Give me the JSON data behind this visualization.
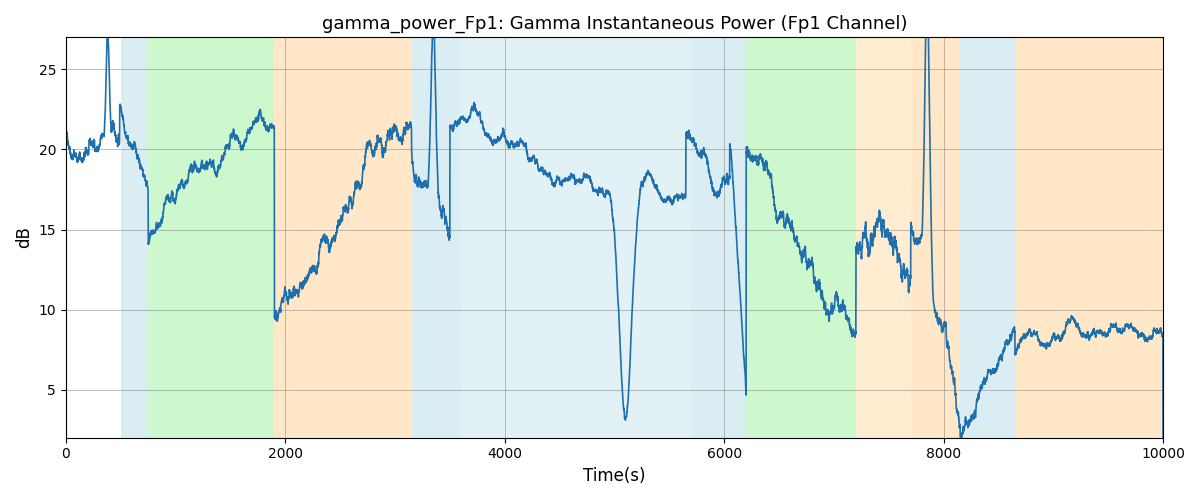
{
  "title": "gamma_power_Fp1: Gamma Instantaneous Power (Fp1 Channel)",
  "xlabel": "Time(s)",
  "ylabel": "dB",
  "xlim": [
    0,
    10000
  ],
  "ylim": [
    2,
    27
  ],
  "line_color": "#1f6fad",
  "line_width": 1.2,
  "background_color": "#ffffff",
  "figsize": [
    12,
    5
  ],
  "dpi": 100,
  "regions": [
    {
      "xmin": 500,
      "xmax": 750,
      "color": "#add8e6",
      "alpha": 0.45
    },
    {
      "xmin": 750,
      "xmax": 1900,
      "color": "#90ee90",
      "alpha": 0.45
    },
    {
      "xmin": 1900,
      "xmax": 3150,
      "color": "#ffd59a",
      "alpha": 0.55
    },
    {
      "xmin": 3150,
      "xmax": 3600,
      "color": "#add8e6",
      "alpha": 0.45
    },
    {
      "xmin": 3600,
      "xmax": 5700,
      "color": "#add8e6",
      "alpha": 0.35
    },
    {
      "xmin": 5700,
      "xmax": 6050,
      "color": "#add8e6",
      "alpha": 0.45
    },
    {
      "xmin": 6050,
      "xmax": 6200,
      "color": "#add8e6",
      "alpha": 0.45
    },
    {
      "xmin": 6200,
      "xmax": 7200,
      "color": "#90ee90",
      "alpha": 0.45
    },
    {
      "xmin": 7200,
      "xmax": 7700,
      "color": "#ffd59a",
      "alpha": 0.45
    },
    {
      "xmin": 7700,
      "xmax": 8150,
      "color": "#ffd59a",
      "alpha": 0.55
    },
    {
      "xmin": 8150,
      "xmax": 8650,
      "color": "#add8e6",
      "alpha": 0.45
    },
    {
      "xmin": 8650,
      "xmax": 10000,
      "color": "#ffd59a",
      "alpha": 0.55
    }
  ],
  "seed": 42,
  "n_points": 10000,
  "segments": [
    {
      "xstart": 0,
      "xend": 490,
      "ystart": 20.5,
      "yend": 20.0,
      "ns": 0.05,
      "na": 2.0,
      "sp": 380,
      "sw": 20,
      "sa": 6.5
    },
    {
      "xstart": 490,
      "xend": 750,
      "ystart": 22.0,
      "yend": 18.0,
      "ns": 0.05,
      "na": 1.5,
      "sp": -1,
      "sw": 1,
      "sa": 0
    },
    {
      "xstart": 750,
      "xend": 1900,
      "ystart": 19.0,
      "yend": 19.0,
      "ns": 0.03,
      "na": 2.5,
      "sp": -1,
      "sw": 1,
      "sa": 0
    },
    {
      "xstart": 1900,
      "xend": 3150,
      "ystart": 10.0,
      "yend": 22.0,
      "ns": 0.04,
      "na": 2.5,
      "sp": -1,
      "sw": 1,
      "sa": 0
    },
    {
      "xstart": 3150,
      "xend": 3500,
      "ystart": 20.0,
      "yend": 14.0,
      "ns": 0.05,
      "na": 2.0,
      "sp": 3350,
      "sw": 30,
      "sa": 11
    },
    {
      "xstart": 3500,
      "xend": 5650,
      "ystart": 19.0,
      "yend": 19.0,
      "ns": 0.03,
      "na": 2.0,
      "sp": 5100,
      "sw": 80,
      "sa": -15
    },
    {
      "xstart": 5650,
      "xend": 6050,
      "ystart": 19.0,
      "yend": 19.0,
      "ns": 0.04,
      "na": 2.0,
      "sp": -1,
      "sw": 1,
      "sa": 0
    },
    {
      "xstart": 6050,
      "xend": 6200,
      "ystart": 21.0,
      "yend": 5.0,
      "ns": 0.05,
      "na": 1.5,
      "sp": -1,
      "sw": 1,
      "sa": 0
    },
    {
      "xstart": 6200,
      "xend": 7200,
      "ystart": 18.0,
      "yend": 10.0,
      "ns": 0.04,
      "na": 2.5,
      "sp": -1,
      "sw": 1,
      "sa": 0
    },
    {
      "xstart": 7200,
      "xend": 7700,
      "ystart": 14.0,
      "yend": 14.0,
      "ns": 0.05,
      "na": 3.0,
      "sp": -1,
      "sw": 1,
      "sa": 0
    },
    {
      "xstart": 7700,
      "xend": 8150,
      "ystart": 17.0,
      "yend": 3.0,
      "ns": 0.05,
      "na": 2.0,
      "sp": 7850,
      "sw": 30,
      "sa": 18
    },
    {
      "xstart": 8150,
      "xend": 8650,
      "ystart": 3.0,
      "yend": 8.0,
      "ns": 0.04,
      "na": 2.0,
      "sp": -1,
      "sw": 1,
      "sa": 0
    },
    {
      "xstart": 8650,
      "xend": 10000,
      "ystart": 8.0,
      "yend": 9.0,
      "ns": 0.04,
      "na": 1.5,
      "sp": -1,
      "sw": 1,
      "sa": 0
    }
  ]
}
